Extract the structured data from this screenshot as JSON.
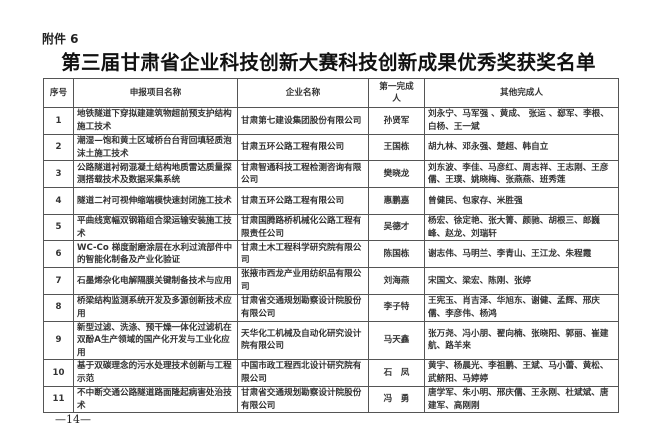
{
  "attachment_label": "附件 6",
  "title": "第三届甘肃省企业科技创新大赛科技创新成果优秀奖获奖名单",
  "table": {
    "headers": [
      "序号",
      "申报项目名称",
      "企业名称",
      "第一完成人",
      "其他完成人"
    ],
    "rows": [
      {
        "no": "1",
        "project": "地铁隧道下穿拟建建筑物超前预支护结构施工技术",
        "company": "甘肃第七建设集团股份有限公司",
        "first": "孙贤军",
        "others": "刘永宁、马军强 、黄成、 张运 、郄军、李根、白杨、王一斌"
      },
      {
        "no": "2",
        "project": "潮湿—饱和黄土区域桥台台背回填轻质泡沫土施工技术",
        "company": "甘肃五环公路工程有限公司",
        "first": "王国栋",
        "others": "胡九林、邓永强、楚超、韩自立"
      },
      {
        "no": "3",
        "project": "公路隧道衬砌混凝土结构地质雷达质量探测搭载技术及数据采集系统",
        "company": "甘肃智通科技工程检测咨询有限公司",
        "first": "樊晓龙",
        "others": "刘东波、李佳、马彦红、周志祥、王志刚、王彦儒、王璞、姚晓梅、张燕燕、班秀莲"
      },
      {
        "no": "4",
        "project": "隧道二衬可视伸缩端模快速封闭施工技术",
        "company": "甘肃五环公路工程有限公司",
        "first": "惠鹏嘉",
        "others": "曾健民、包家存、米胜强"
      },
      {
        "no": "5",
        "project": "平曲线宽幅双钢箱组合梁运输安装施工技术",
        "company": "甘肃国腾路桥机械化公路工程有限责任公司",
        "first": "吴德才",
        "others": "杨宏、徐定艳、张大箐、颜驰、胡根三、郎巍峰、赵龙、刘瑞轩"
      },
      {
        "no": "6",
        "project": "WC-Co 梯度耐磨涂层在水利过流部件中的智能化制备及产业化验证",
        "company": "甘肃土木工程科学研究院有限公司",
        "first": "陈国栋",
        "others": "谢志伟、马明兰、李青山、王江龙、朱程霞"
      },
      {
        "no": "7",
        "project": "石墨烯杂化电解隔膜关键制备技术与应用",
        "company": "张掖市西龙产业用纺织品有限公司",
        "first": "刘海燕",
        "others": "宋国文、梁宏、陈刚、张婷"
      },
      {
        "no": "8",
        "project": "桥梁结构监测系统开发及多源创新技术应用",
        "company": "甘肃省交通规划勘察设计院股份有限公司",
        "first": "李子特",
        "others": "王宪玉、肖吉泽、华旭东、谢健、孟辉、邢庆儒、李彦伟、杨鸿"
      },
      {
        "no": "9",
        "project": "新型过滤、洗涤、预干燥一体化过滤机在双酚A生产领域的国产化开发与工业化应用",
        "company": "天华化工机械及自动化研究设计院有限公司",
        "first": "马天鑫",
        "others": "张万尧、冯小朋、翟向楠、张晓阳、郭丽、崔建航、路羊来"
      },
      {
        "no": "10",
        "project": "基于双碳理念的污水处理技术创新与工程示范",
        "company": "中国市政工程西北设计研究院有限公司",
        "first": "石　凤",
        "others": "黄宇、杨晨光、李祖鹏、王斌、马小蕾、黄松、武鲚阳、马婷婷"
      },
      {
        "no": "11",
        "project": "不中断交通公路隧道路面隆起病害处治技术",
        "company": "甘肃省交通规划勘察设计院股份有限公司",
        "first": "冯　勇",
        "others": "唐学军、朱小明、邢庆儒、王永刚、杜斌斌、唐建军、高刚刚"
      }
    ]
  },
  "page_number": "—14—"
}
